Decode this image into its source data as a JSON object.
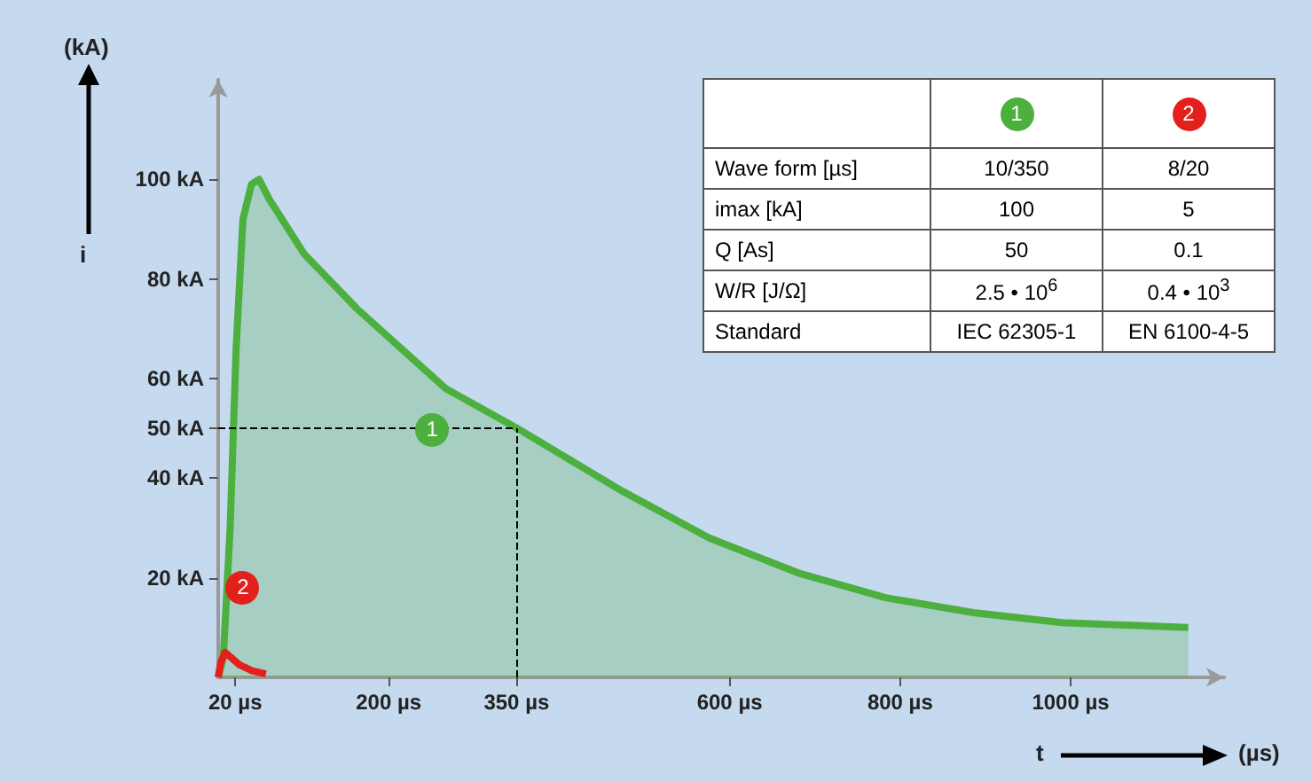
{
  "chart_data": {
    "type": "area",
    "xlabel": "(µs)",
    "ylabel": "(kA)",
    "x": [
      0,
      6,
      14,
      21,
      29,
      39,
      48,
      60,
      101,
      163,
      267,
      351,
      473,
      576,
      680,
      783,
      886,
      990,
      1138
    ],
    "series": [
      {
        "name": "1",
        "color": "#4caf3e",
        "values": [
          0,
          4,
          30,
          66,
          92,
          99,
          100,
          96,
          85,
          74,
          58,
          50,
          37.5,
          28,
          21,
          16,
          13,
          11,
          10
        ]
      },
      {
        "name": "2",
        "color": "#e3201b",
        "type": "line",
        "x": [
          0,
          3,
          8,
          15,
          25,
          40,
          56
        ],
        "values": [
          0,
          3,
          5,
          4,
          2.5,
          1.3,
          0.7
        ]
      }
    ],
    "xlim": [
      0,
      1180
    ],
    "ylim": [
      0,
      120
    ],
    "xticks": [
      {
        "value": 20,
        "label": "20 µs"
      },
      {
        "value": 200,
        "label": "200 µs"
      },
      {
        "value": 350,
        "label": "350 µs"
      },
      {
        "value": 600,
        "label": "600 µs"
      },
      {
        "value": 800,
        "label": "800 µs"
      },
      {
        "value": 1000,
        "label": "1000 µs"
      }
    ],
    "yticks": [
      {
        "value": 20,
        "label": "20 kA"
      },
      {
        "value": 40,
        "label": "40 kA"
      },
      {
        "value": 50,
        "label": "50 kA"
      },
      {
        "value": 60,
        "label": "60 kA"
      },
      {
        "value": 80,
        "label": "80 kA"
      },
      {
        "value": 100,
        "label": "100 kA"
      }
    ],
    "ref_lines": [
      {
        "axis": "y",
        "value": 50,
        "color": "#000000",
        "line_style": "dashed"
      },
      {
        "axis": "x",
        "value": 350,
        "color": "#000000",
        "line_style": "dashed"
      }
    ],
    "annotations": [
      "i",
      "t",
      "Wave form [µs]",
      "10/350",
      "8/20",
      "imax [kA]",
      "100",
      "5",
      "Q [As]",
      "50",
      "0.1",
      "W/R [J/Ω]",
      "2.5 • 10$^{6}$",
      "0.4 • 10$^{3}$",
      "Standard",
      "IEC 62305-1",
      "EN 6100-4-5"
    ],
    "legend": false,
    "grid": false,
    "marker": "none"
  }
}
